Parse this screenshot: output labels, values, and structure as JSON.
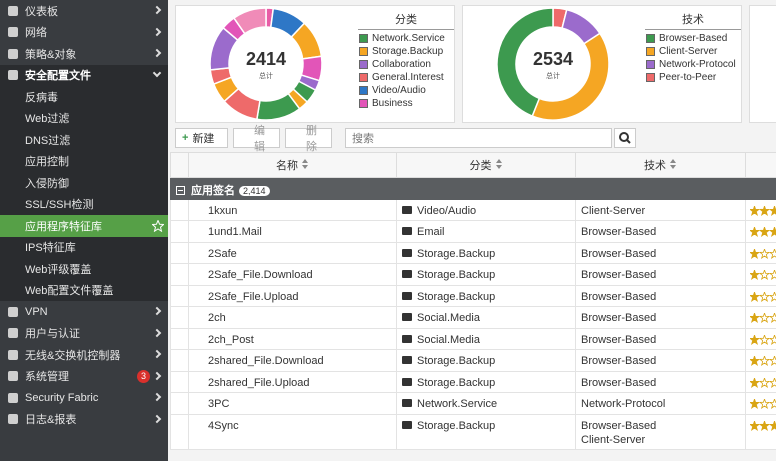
{
  "sidebar": {
    "items": [
      {
        "label": "仪表板"
      },
      {
        "label": "网络"
      },
      {
        "label": "策略&对象"
      },
      {
        "label": "安全配置文件",
        "children": [
          {
            "label": "反病毒"
          },
          {
            "label": "Web过滤"
          },
          {
            "label": "DNS过滤"
          },
          {
            "label": "应用控制"
          },
          {
            "label": "入侵防御"
          },
          {
            "label": "SSL/SSH检测"
          },
          {
            "label": "应用程序特征库",
            "selected": true
          },
          {
            "label": "IPS特征库"
          },
          {
            "label": "Web评级覆盖"
          },
          {
            "label": "Web配置文件覆盖"
          }
        ]
      },
      {
        "label": "VPN"
      },
      {
        "label": "用户与认证"
      },
      {
        "label": "无线&交换机控制器"
      },
      {
        "label": "系统管理",
        "badge": 3
      },
      {
        "label": "Security Fabric"
      },
      {
        "label": "日志&报表"
      }
    ]
  },
  "widgets": [
    {
      "title": "分类",
      "total": 2414,
      "total_label": "总计",
      "legend": [
        {
          "name": "Network.Service",
          "color": "#3d9a4f"
        },
        {
          "name": "Storage.Backup",
          "color": "#f5a623"
        },
        {
          "name": "Collaboration",
          "color": "#9b6bcc"
        },
        {
          "name": "General.Interest",
          "color": "#ee6a6a"
        },
        {
          "name": "Video/Audio",
          "color": "#2e77c6"
        },
        {
          "name": "Business",
          "color": "#e255b8"
        }
      ],
      "segments": [
        {
          "value": 50,
          "color": "#e85ca6"
        },
        {
          "value": 240,
          "color": "#2e77c6"
        },
        {
          "value": 260,
          "color": "#f5a623"
        },
        {
          "value": 170,
          "color": "#e255b8"
        },
        {
          "value": 70,
          "color": "#9b6bcc"
        },
        {
          "value": 100,
          "color": "#3d9a4f"
        },
        {
          "value": 70,
          "color": "#f5a623"
        },
        {
          "value": 310,
          "color": "#3d9a4f"
        },
        {
          "value": 260,
          "color": "#ee6a6a"
        },
        {
          "value": 140,
          "color": "#f5a623"
        },
        {
          "value": 100,
          "color": "#ee6a6a"
        },
        {
          "value": 310,
          "color": "#9b6bcc"
        },
        {
          "value": 100,
          "color": "#e255b8"
        },
        {
          "value": 234,
          "color": "#f08bb8"
        }
      ]
    },
    {
      "title": "技术",
      "total": 2534,
      "total_label": "总计",
      "legend": [
        {
          "name": "Browser-Based",
          "color": "#3d9a4f"
        },
        {
          "name": "Client-Server",
          "color": "#f5a623"
        },
        {
          "name": "Network-Protocol",
          "color": "#9b6bcc"
        },
        {
          "name": "Peer-to-Peer",
          "color": "#ee6a6a"
        }
      ],
      "segments": [
        {
          "value": 100,
          "color": "#ee6a6a"
        },
        {
          "value": 300,
          "color": "#9b6bcc"
        },
        {
          "value": 1020,
          "color": "#f5a623"
        },
        {
          "value": 1114,
          "color": "#3d9a4f"
        }
      ]
    }
  ],
  "toolbar": {
    "new": "新建",
    "edit": "编辑",
    "delete": "删除",
    "search_placeholder": "搜索"
  },
  "table": {
    "columns": [
      "名称",
      "分类",
      "技术"
    ],
    "group": {
      "label": "应用签名",
      "count": "2,414"
    },
    "rows": [
      {
        "name": "1kxun",
        "category": "Video/Audio",
        "technology": [
          "Client-Server"
        ],
        "risk": 3
      },
      {
        "name": "1und1.Mail",
        "category": "Email",
        "technology": [
          "Browser-Based"
        ],
        "risk": 3
      },
      {
        "name": "2Safe",
        "category": "Storage.Backup",
        "technology": [
          "Browser-Based"
        ],
        "risk": 1
      },
      {
        "name": "2Safe_File.Download",
        "category": "Storage.Backup",
        "technology": [
          "Browser-Based"
        ],
        "risk": 1
      },
      {
        "name": "2Safe_File.Upload",
        "category": "Storage.Backup",
        "technology": [
          "Browser-Based"
        ],
        "risk": 1
      },
      {
        "name": "2ch",
        "category": "Social.Media",
        "technology": [
          "Browser-Based"
        ],
        "risk": 1
      },
      {
        "name": "2ch_Post",
        "category": "Social.Media",
        "technology": [
          "Browser-Based"
        ],
        "risk": 1
      },
      {
        "name": "2shared_File.Download",
        "category": "Storage.Backup",
        "technology": [
          "Browser-Based"
        ],
        "risk": 1
      },
      {
        "name": "2shared_File.Upload",
        "category": "Storage.Backup",
        "technology": [
          "Browser-Based"
        ],
        "risk": 1
      },
      {
        "name": "3PC",
        "category": "Network.Service",
        "technology": [
          "Network-Protocol"
        ],
        "risk": 1
      },
      {
        "name": "4Sync",
        "category": "Storage.Backup",
        "technology": [
          "Browser-Based",
          "Client-Server"
        ],
        "risk": 3
      }
    ]
  }
}
